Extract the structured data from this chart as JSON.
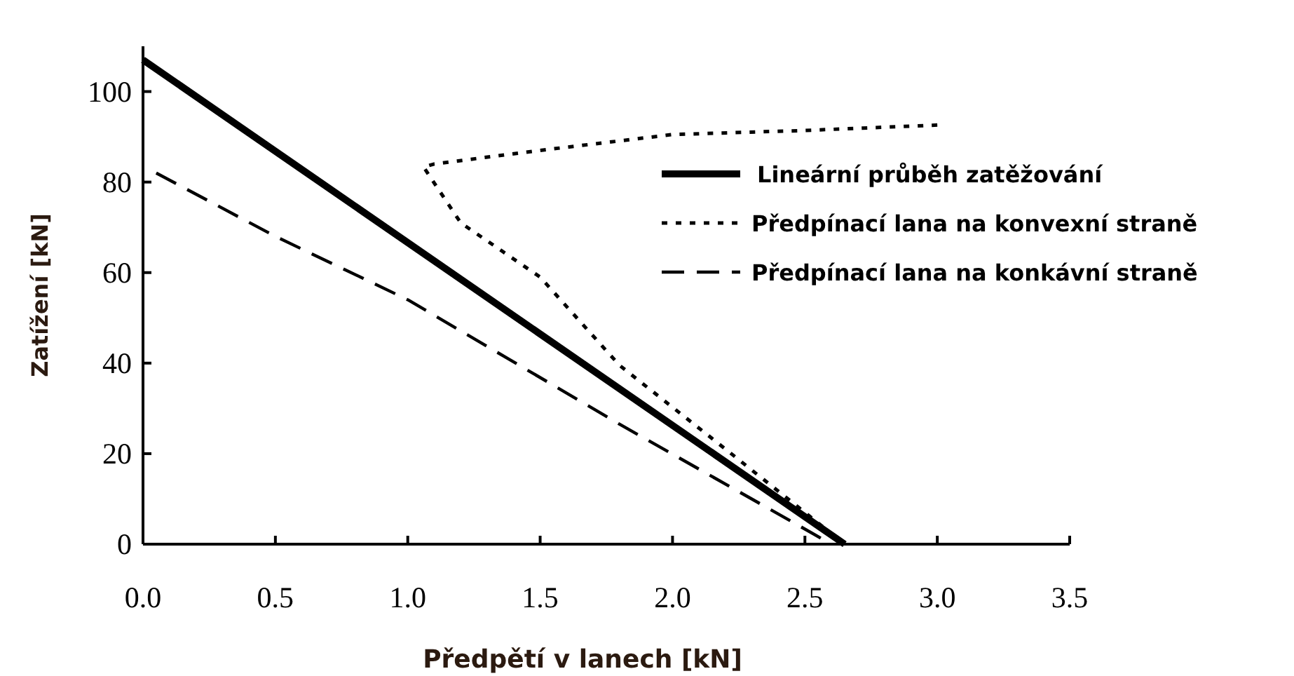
{
  "chart_data": {
    "type": "line",
    "xlabel": "Předpětí v lanech [kN]",
    "ylabel": "Zatížení [kN]",
    "xlim": [
      0,
      3.5
    ],
    "ylim": [
      0,
      110
    ],
    "xticks": [
      {
        "value": 0,
        "label": "0.0"
      },
      0.5,
      {
        "value": 1,
        "label": "1.0"
      },
      1.5,
      {
        "value": 2,
        "label": "2.0"
      },
      2.5,
      {
        "value": 3,
        "label": "3.0"
      },
      3.5
    ],
    "yticks": [
      0,
      20,
      40,
      60,
      80,
      100
    ],
    "grid": false,
    "legend": "top right",
    "series": [
      {
        "name": "Lineární průběh zatěžování",
        "color": "#000000",
        "line_style": "solid",
        "x": [
          0,
          2.65
        ],
        "values": [
          107,
          0
        ]
      },
      {
        "name": "Předpínací lana na konvexní straně",
        "color": "#000000",
        "line_style": "dotted",
        "x": [
          3.0,
          2.5,
          2.0,
          1.5,
          1.1,
          1.06,
          1.2,
          1.5,
          1.8,
          2.2,
          2.65
        ],
        "values": [
          92.6,
          91.4,
          90.5,
          87,
          84,
          83.3,
          71,
          59,
          39.5,
          21,
          0
        ]
      },
      {
        "name": "Předpínací lana na konkávní straně",
        "color": "#000000",
        "line_style": "dashed",
        "x": [
          0.05,
          0.5,
          1.0,
          1.8,
          2.45,
          2.6
        ],
        "values": [
          82,
          68,
          54,
          26.5,
          5,
          0
        ]
      }
    ]
  }
}
